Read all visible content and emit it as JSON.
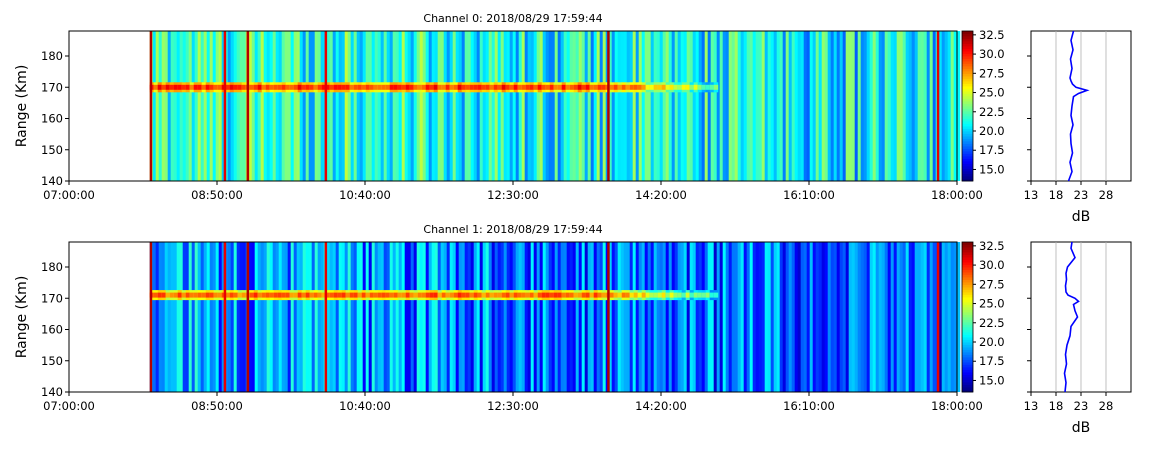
{
  "chart_data": [
    {
      "type": "heatmap",
      "title": "Channel 0: 2018/08/29 17:59:44",
      "ylabel": "Range (Km)",
      "xlabel": "",
      "xlim": [
        "07:00:00",
        "18:00:00"
      ],
      "ylim": [
        140,
        188
      ],
      "x_ticks": [
        "07:00:00",
        "08:50:00",
        "10:40:00",
        "12:30:00",
        "14:20:00",
        "16:10:00",
        "18:00:00"
      ],
      "y_ticks": [
        140,
        150,
        160,
        170,
        180
      ],
      "colorbar": {
        "min": 13.5,
        "max": 33.0,
        "ticks": [
          "15.0",
          "17.5",
          "20.0",
          "22.5",
          "25.0",
          "27.5",
          "30.0",
          "32.5"
        ],
        "colormap": "jet"
      },
      "data_start_time": "08:00:00",
      "echo_layer": {
        "range_km": 170,
        "start": "08:00:00",
        "end": "15:00:00",
        "peak_db": 31
      },
      "background_db": 22,
      "profile": {
        "xlabel": "dB",
        "x_ticks": [
          13,
          18,
          23,
          28
        ],
        "xlim": [
          13,
          33
        ],
        "ranges": [
          140,
          143,
          146,
          149,
          152,
          155,
          158,
          161,
          164,
          167,
          168,
          169,
          170,
          171,
          172,
          173,
          176,
          179,
          182,
          185,
          188
        ],
        "values": [
          20.5,
          21.2,
          20.8,
          21.3,
          21.0,
          20.9,
          21.4,
          21.0,
          21.2,
          21.5,
          22.5,
          24.2,
          22.0,
          21.3,
          21.0,
          20.8,
          21.2,
          20.9,
          21.4,
          21.0,
          21.5
        ]
      }
    },
    {
      "type": "heatmap",
      "title": "Channel 1: 2018/08/29 17:59:44",
      "ylabel": "Range (Km)",
      "xlabel": "",
      "xlim": [
        "07:00:00",
        "18:00:00"
      ],
      "ylim": [
        140,
        188
      ],
      "x_ticks": [
        "07:00:00",
        "08:50:00",
        "10:40:00",
        "12:30:00",
        "14:20:00",
        "16:10:00",
        "18:00:00"
      ],
      "y_ticks": [
        140,
        150,
        160,
        170,
        180
      ],
      "colorbar": {
        "min": 13.5,
        "max": 33.0,
        "ticks": [
          "15.0",
          "17.5",
          "20.0",
          "22.5",
          "25.0",
          "27.5",
          "30.0",
          "32.5"
        ],
        "colormap": "jet"
      },
      "data_start_time": "08:00:00",
      "echo_layer": {
        "range_km": 171,
        "start": "08:00:00",
        "end": "15:00:00",
        "peak_db": 30
      },
      "background_db": 19,
      "profile": {
        "xlabel": "dB",
        "x_ticks": [
          13,
          18,
          23,
          28
        ],
        "xlim": [
          13,
          33
        ],
        "ranges": [
          140,
          143,
          146,
          149,
          152,
          155,
          158,
          161,
          164,
          166,
          168,
          169,
          170,
          171,
          172,
          174,
          176,
          178,
          180,
          183,
          186,
          188
        ],
        "values": [
          19.8,
          20.0,
          19.7,
          20.1,
          19.9,
          20.2,
          20.8,
          21.0,
          22.3,
          21.8,
          21.5,
          22.5,
          21.8,
          20.4,
          20.0,
          19.9,
          20.1,
          20.0,
          20.3,
          21.8,
          21.0,
          21.2
        ]
      }
    }
  ]
}
